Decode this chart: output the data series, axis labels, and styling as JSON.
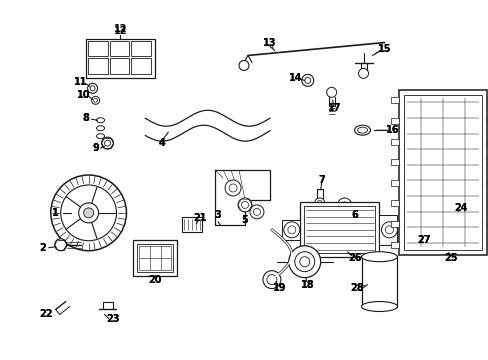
{
  "background_color": "#ffffff",
  "fig_width": 4.89,
  "fig_height": 3.6,
  "dpi": 100,
  "label_fontsize": 7.0,
  "line_color": "#1a1a1a",
  "label_color": "#000000",
  "label_bold": true
}
